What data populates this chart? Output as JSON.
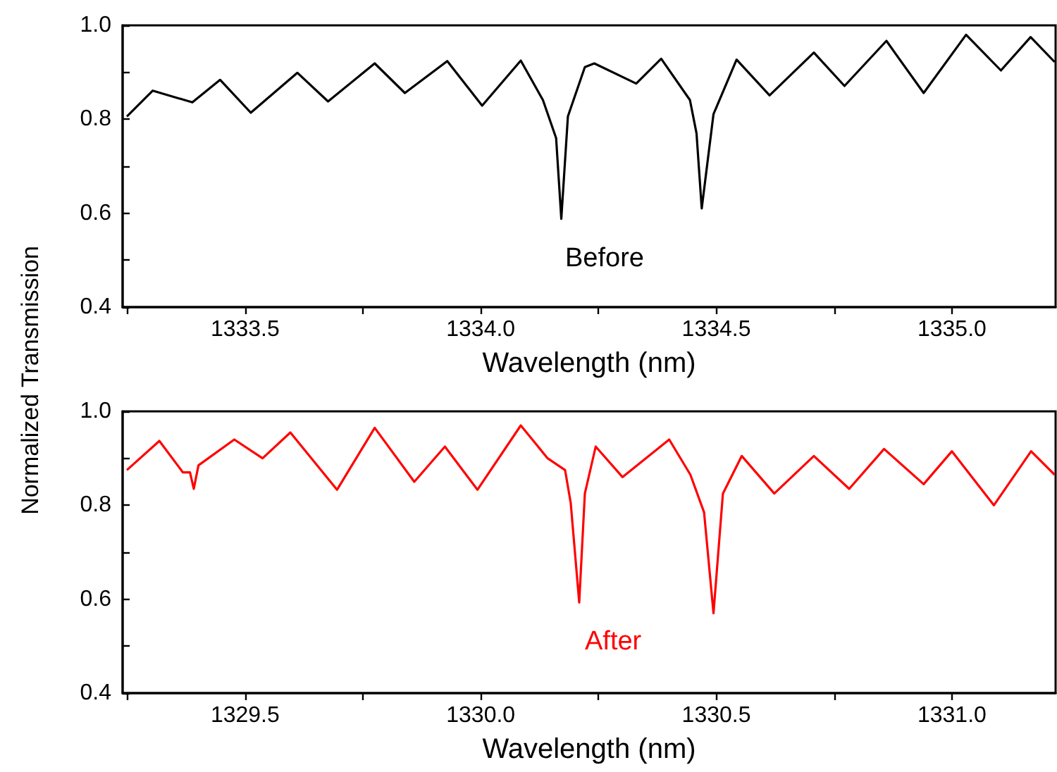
{
  "chart_data": [
    {
      "type": "line",
      "ylabel": "Normalized Transmission",
      "xlabel": "Wavelength (nm)",
      "xlim": [
        1333.24,
        1335.22
      ],
      "ylim": [
        0.4,
        1.0
      ],
      "xticks": [
        {
          "value": 1333.25,
          "label": null
        },
        {
          "value": 1333.5,
          "label": "1333.5"
        },
        {
          "value": 1333.75,
          "label": null
        },
        {
          "value": 1334.0,
          "label": "1334.0"
        },
        {
          "value": 1334.25,
          "label": null
        },
        {
          "value": 1334.5,
          "label": "1334.5"
        },
        {
          "value": 1334.75,
          "label": null
        },
        {
          "value": 1335.0,
          "label": "1335.0"
        }
      ],
      "yticks": [
        {
          "value": 0.4,
          "label": "0.4"
        },
        {
          "value": 0.5,
          "label": null
        },
        {
          "value": 0.6,
          "label": "0.6"
        },
        {
          "value": 0.7,
          "label": null
        },
        {
          "value": 0.8,
          "label": "0.8"
        },
        {
          "value": 0.9,
          "label": null
        },
        {
          "value": 1.0,
          "label": "1.0"
        }
      ],
      "annotations": [
        "Before"
      ],
      "series": [
        {
          "color": "#000000",
          "x": [
            1333.249,
            1333.304,
            1333.388,
            1333.447,
            1333.512,
            1333.611,
            1333.676,
            1333.775,
            1333.839,
            1333.929,
            1334.003,
            1334.085,
            1334.132,
            1334.16,
            1334.171,
            1334.185,
            1334.221,
            1334.241,
            1334.33,
            1334.383,
            1334.444,
            1334.458,
            1334.469,
            1334.494,
            1334.543,
            1334.613,
            1334.707,
            1334.772,
            1334.861,
            1334.94,
            1335.03,
            1335.104,
            1335.167,
            1335.218
          ],
          "values": [
            0.806,
            0.861,
            0.836,
            0.884,
            0.814,
            0.899,
            0.838,
            0.919,
            0.856,
            0.924,
            0.829,
            0.925,
            0.841,
            0.76,
            0.588,
            0.806,
            0.911,
            0.919,
            0.876,
            0.929,
            0.841,
            0.77,
            0.61,
            0.811,
            0.927,
            0.851,
            0.942,
            0.871,
            0.967,
            0.856,
            0.98,
            0.904,
            0.975,
            0.922
          ]
        }
      ]
    },
    {
      "type": "line",
      "xlabel": "Wavelength (nm)",
      "xlim": [
        1329.24,
        1331.22
      ],
      "ylim": [
        0.4,
        1.0
      ],
      "xticks": [
        {
          "value": 1329.25,
          "label": null
        },
        {
          "value": 1329.5,
          "label": "1329.5"
        },
        {
          "value": 1329.75,
          "label": null
        },
        {
          "value": 1330.0,
          "label": "1330.0"
        },
        {
          "value": 1330.25,
          "label": null
        },
        {
          "value": 1330.5,
          "label": "1330.5"
        },
        {
          "value": 1330.75,
          "label": null
        },
        {
          "value": 1331.0,
          "label": "1331.0"
        }
      ],
      "yticks": [
        {
          "value": 0.4,
          "label": "0.4"
        },
        {
          "value": 0.5,
          "label": null
        },
        {
          "value": 0.6,
          "label": "0.6"
        },
        {
          "value": 0.7,
          "label": null
        },
        {
          "value": 0.8,
          "label": "0.8"
        },
        {
          "value": 0.9,
          "label": null
        },
        {
          "value": 1.0,
          "label": "1.0"
        }
      ],
      "annotations": [
        "After"
      ],
      "series": [
        {
          "color": "#ff0000",
          "x": [
            1329.249,
            1329.318,
            1329.368,
            1329.383,
            1329.391,
            1329.401,
            1329.477,
            1329.537,
            1329.596,
            1329.695,
            1329.775,
            1329.859,
            1329.924,
            1329.993,
            1330.085,
            1330.142,
            1330.179,
            1330.191,
            1330.209,
            1330.221,
            1330.244,
            1330.301,
            1330.4,
            1330.445,
            1330.474,
            1330.494,
            1330.514,
            1330.554,
            1330.623,
            1330.707,
            1330.782,
            1330.856,
            1330.94,
            1331.0,
            1331.089,
            1331.168,
            1331.218
          ],
          "values": [
            0.875,
            0.937,
            0.87,
            0.87,
            0.835,
            0.885,
            0.94,
            0.9,
            0.955,
            0.833,
            0.965,
            0.85,
            0.925,
            0.833,
            0.97,
            0.9,
            0.875,
            0.805,
            0.593,
            0.825,
            0.925,
            0.86,
            0.94,
            0.865,
            0.785,
            0.57,
            0.825,
            0.905,
            0.825,
            0.905,
            0.835,
            0.92,
            0.845,
            0.915,
            0.8,
            0.915,
            0.865
          ]
        }
      ]
    }
  ]
}
